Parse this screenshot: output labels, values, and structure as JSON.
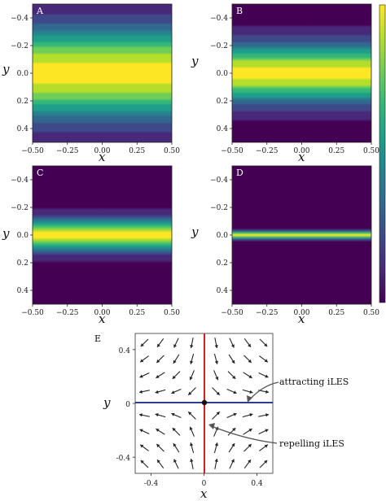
{
  "colors": {
    "viridis": [
      "#440154",
      "#482878",
      "#3e4989",
      "#31688e",
      "#26828e",
      "#1f9e89",
      "#35b779",
      "#6ece58",
      "#b5de2b",
      "#fde725"
    ],
    "nullcline_vertical": "#cc2222",
    "nullcline_horizontal": "#2b3d8f",
    "arrow": "#222222"
  },
  "chart_data": [
    {
      "type": "heatmap",
      "panel": "A",
      "label": "A",
      "xlabel": "x",
      "ylabel": "y",
      "xlim": [
        -0.5,
        0.5
      ],
      "ylim": [
        -0.5,
        0.5
      ],
      "xticks": [
        "−0.50",
        "−0.25",
        "0.00",
        "0.25",
        "0.50"
      ],
      "yticks": [
        "−0.4",
        "−0.2",
        "0.0",
        "0.2",
        "0.4"
      ],
      "profile": "gaussian-in-y",
      "band_halfwidth": 0.32
    },
    {
      "type": "heatmap",
      "panel": "B",
      "label": "B",
      "xlabel": "x",
      "ylabel": "y",
      "xlim": [
        -0.5,
        0.5
      ],
      "ylim": [
        -0.5,
        0.5
      ],
      "xticks": [
        "−0.50",
        "−0.25",
        "0.00",
        "0.25",
        "0.50"
      ],
      "yticks": [
        "−0.4",
        "−0.2",
        "0.0",
        "0.2",
        "0.4"
      ],
      "profile": "gaussian-in-y",
      "band_halfwidth": 0.2
    },
    {
      "type": "heatmap",
      "panel": "C",
      "label": "C",
      "xlabel": "x",
      "ylabel": "y",
      "xlim": [
        -0.5,
        0.5
      ],
      "ylim": [
        -0.5,
        0.5
      ],
      "xticks": [
        "−0.50",
        "−0.25",
        "0.00",
        "0.25",
        "0.50"
      ],
      "yticks": [
        "−0.4",
        "−0.2",
        "0.0",
        "0.2",
        "0.4"
      ],
      "profile": "gaussian-in-y",
      "band_halfwidth": 0.11
    },
    {
      "type": "heatmap",
      "panel": "D",
      "label": "D",
      "xlabel": "x",
      "ylabel": "y",
      "xlim": [
        -0.5,
        0.5
      ],
      "ylim": [
        -0.5,
        0.5
      ],
      "xticks": [
        "−0.50",
        "−0.25",
        "0.00",
        "0.25",
        "0.50"
      ],
      "yticks": [
        "−0.4",
        "−0.2",
        "0.0",
        "0.2",
        "0.4"
      ],
      "profile": "gaussian-in-y",
      "band_halfwidth": 0.025
    },
    {
      "type": "quiver",
      "panel": "E",
      "label": "E",
      "xlabel": "x",
      "ylabel": "y",
      "xlim": [
        -0.52,
        0.52
      ],
      "ylim": [
        -0.52,
        0.52
      ],
      "xticks": [
        "-0.4",
        "0",
        "0.4"
      ],
      "xtick_values": [
        -0.4,
        0,
        0.4
      ],
      "yticks": [
        "-0.4",
        "0",
        "0.4"
      ],
      "ytick_values": [
        -0.4,
        0,
        0.4
      ],
      "grid_values": [
        -0.45,
        -0.33,
        -0.21,
        -0.09,
        0.09,
        0.21,
        0.33,
        0.45
      ],
      "field": "u = x, v = -y",
      "equilibrium": [
        0,
        0
      ],
      "annotations": [
        {
          "text": "attracting iLES",
          "target": [
            0.33,
            0
          ]
        },
        {
          "text": "repelling iLES",
          "target": [
            0.03,
            -0.18
          ]
        }
      ]
    }
  ]
}
